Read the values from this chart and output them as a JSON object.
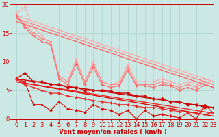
{
  "background_color": "#cce8e4",
  "grid_color": "#b0d8d0",
  "xlabel": "Vent moyen/en rafales ( km/h )",
  "xlabel_color": "#cc0000",
  "xlim": [
    -0.5,
    23
  ],
  "ylim": [
    0,
    20
  ],
  "yticks": [
    0,
    5,
    10,
    15,
    20
  ],
  "xticks": [
    0,
    1,
    2,
    3,
    4,
    5,
    6,
    7,
    8,
    9,
    10,
    11,
    12,
    13,
    14,
    15,
    16,
    17,
    18,
    19,
    20,
    21,
    22,
    23
  ],
  "tick_fontsize": 6,
  "series": [
    {
      "x": [
        0,
        1,
        2,
        3,
        4,
        5,
        6,
        7,
        8,
        9,
        10,
        11,
        12,
        13,
        14,
        15,
        16,
        17,
        18,
        19,
        20,
        21,
        22,
        23
      ],
      "y": [
        18.5,
        19.5,
        16.0,
        14.5,
        13.0,
        7.5,
        6.5,
        10.5,
        6.5,
        10.0,
        6.5,
        6.0,
        6.5,
        9.5,
        6.5,
        6.5,
        6.5,
        7.0,
        6.5,
        6.0,
        6.5,
        6.0,
        7.0,
        6.5
      ],
      "color": "#ffaaaa",
      "lw": 0.8,
      "marker": "D",
      "ms": 2.0
    },
    {
      "x": [
        0,
        23
      ],
      "y": [
        18.0,
        6.5
      ],
      "color": "#ffaaaa",
      "lw": 1.0,
      "marker": null,
      "ms": 0
    },
    {
      "x": [
        0,
        1,
        2,
        3,
        4,
        5,
        6,
        7,
        8,
        9,
        10,
        11,
        12,
        13,
        14,
        15,
        16,
        17,
        18,
        19,
        20,
        21,
        22,
        23
      ],
      "y": [
        18.0,
        16.5,
        15.0,
        14.0,
        13.5,
        7.5,
        6.5,
        10.0,
        6.5,
        9.5,
        6.5,
        6.0,
        6.0,
        9.0,
        6.0,
        6.0,
        6.0,
        6.5,
        6.0,
        5.5,
        6.0,
        5.5,
        6.5,
        6.0
      ],
      "color": "#ff8888",
      "lw": 0.8,
      "marker": "D",
      "ms": 2.0
    },
    {
      "x": [
        0,
        23
      ],
      "y": [
        17.5,
        6.0
      ],
      "color": "#ff8888",
      "lw": 1.0,
      "marker": null,
      "ms": 0
    },
    {
      "x": [
        0,
        1,
        2,
        3,
        4,
        5,
        6,
        7,
        8,
        9,
        10,
        11,
        12,
        13,
        14,
        15,
        16,
        17,
        18,
        19,
        20,
        21,
        22,
        23
      ],
      "y": [
        18.0,
        16.0,
        14.5,
        13.5,
        13.0,
        7.0,
        6.0,
        9.5,
        6.0,
        9.0,
        6.0,
        5.5,
        5.8,
        8.5,
        5.8,
        5.8,
        5.5,
        6.0,
        5.8,
        5.0,
        5.5,
        5.0,
        6.0,
        5.5
      ],
      "color": "#ff6666",
      "lw": 0.8,
      "marker": "D",
      "ms": 2.0
    },
    {
      "x": [
        0,
        23
      ],
      "y": [
        17.0,
        5.5
      ],
      "color": "#ff6666",
      "lw": 1.0,
      "marker": null,
      "ms": 0
    },
    {
      "x": [
        0,
        1,
        2,
        3,
        4,
        5,
        6,
        7,
        8,
        9,
        10,
        11,
        12,
        13,
        14,
        15,
        16,
        17,
        18,
        19,
        20,
        21,
        22,
        23
      ],
      "y": [
        7.0,
        8.0,
        6.5,
        6.5,
        6.0,
        6.0,
        5.5,
        5.5,
        5.0,
        5.0,
        5.0,
        4.8,
        4.5,
        4.5,
        4.0,
        4.0,
        3.5,
        3.5,
        3.0,
        3.0,
        2.5,
        2.5,
        2.0,
        2.0
      ],
      "color": "#cc0000",
      "lw": 1.0,
      "marker": "D",
      "ms": 2.5
    },
    {
      "x": [
        0,
        23
      ],
      "y": [
        7.0,
        2.0
      ],
      "color": "#cc0000",
      "lw": 1.0,
      "marker": null,
      "ms": 0
    },
    {
      "x": [
        0,
        1,
        2,
        3,
        4,
        5,
        6,
        7,
        8,
        9,
        10,
        11,
        12,
        13,
        14,
        15,
        16,
        17,
        18,
        19,
        20,
        21,
        22,
        23
      ],
      "y": [
        7.0,
        6.5,
        2.5,
        2.5,
        1.5,
        3.0,
        1.8,
        1.5,
        1.2,
        2.5,
        1.8,
        1.5,
        0.8,
        1.5,
        0.0,
        1.5,
        0.5,
        0.8,
        0.5,
        0.2,
        1.0,
        0.0,
        2.5,
        1.0
      ],
      "color": "#dd0000",
      "lw": 0.8,
      "marker": "D",
      "ms": 2.0
    },
    {
      "x": [
        0,
        23
      ],
      "y": [
        6.5,
        0.5
      ],
      "color": "#dd0000",
      "lw": 1.0,
      "marker": null,
      "ms": 0
    },
    {
      "x": [
        0,
        1,
        2,
        3,
        4,
        5,
        6,
        7,
        8,
        9,
        10,
        11,
        12,
        13,
        14,
        15,
        16,
        17,
        18,
        19,
        20,
        21,
        22,
        23
      ],
      "y": [
        7.0,
        6.0,
        5.5,
        5.0,
        4.5,
        4.5,
        4.0,
        3.8,
        3.5,
        3.2,
        3.0,
        2.8,
        2.5,
        2.5,
        2.2,
        2.0,
        2.0,
        1.8,
        1.5,
        1.3,
        1.2,
        1.0,
        0.8,
        1.2
      ],
      "color": "#ee2222",
      "lw": 0.8,
      "marker": "D",
      "ms": 2.0
    },
    {
      "x": [
        0,
        23
      ],
      "y": [
        6.5,
        1.0
      ],
      "color": "#ee2222",
      "lw": 1.0,
      "marker": null,
      "ms": 0
    }
  ]
}
